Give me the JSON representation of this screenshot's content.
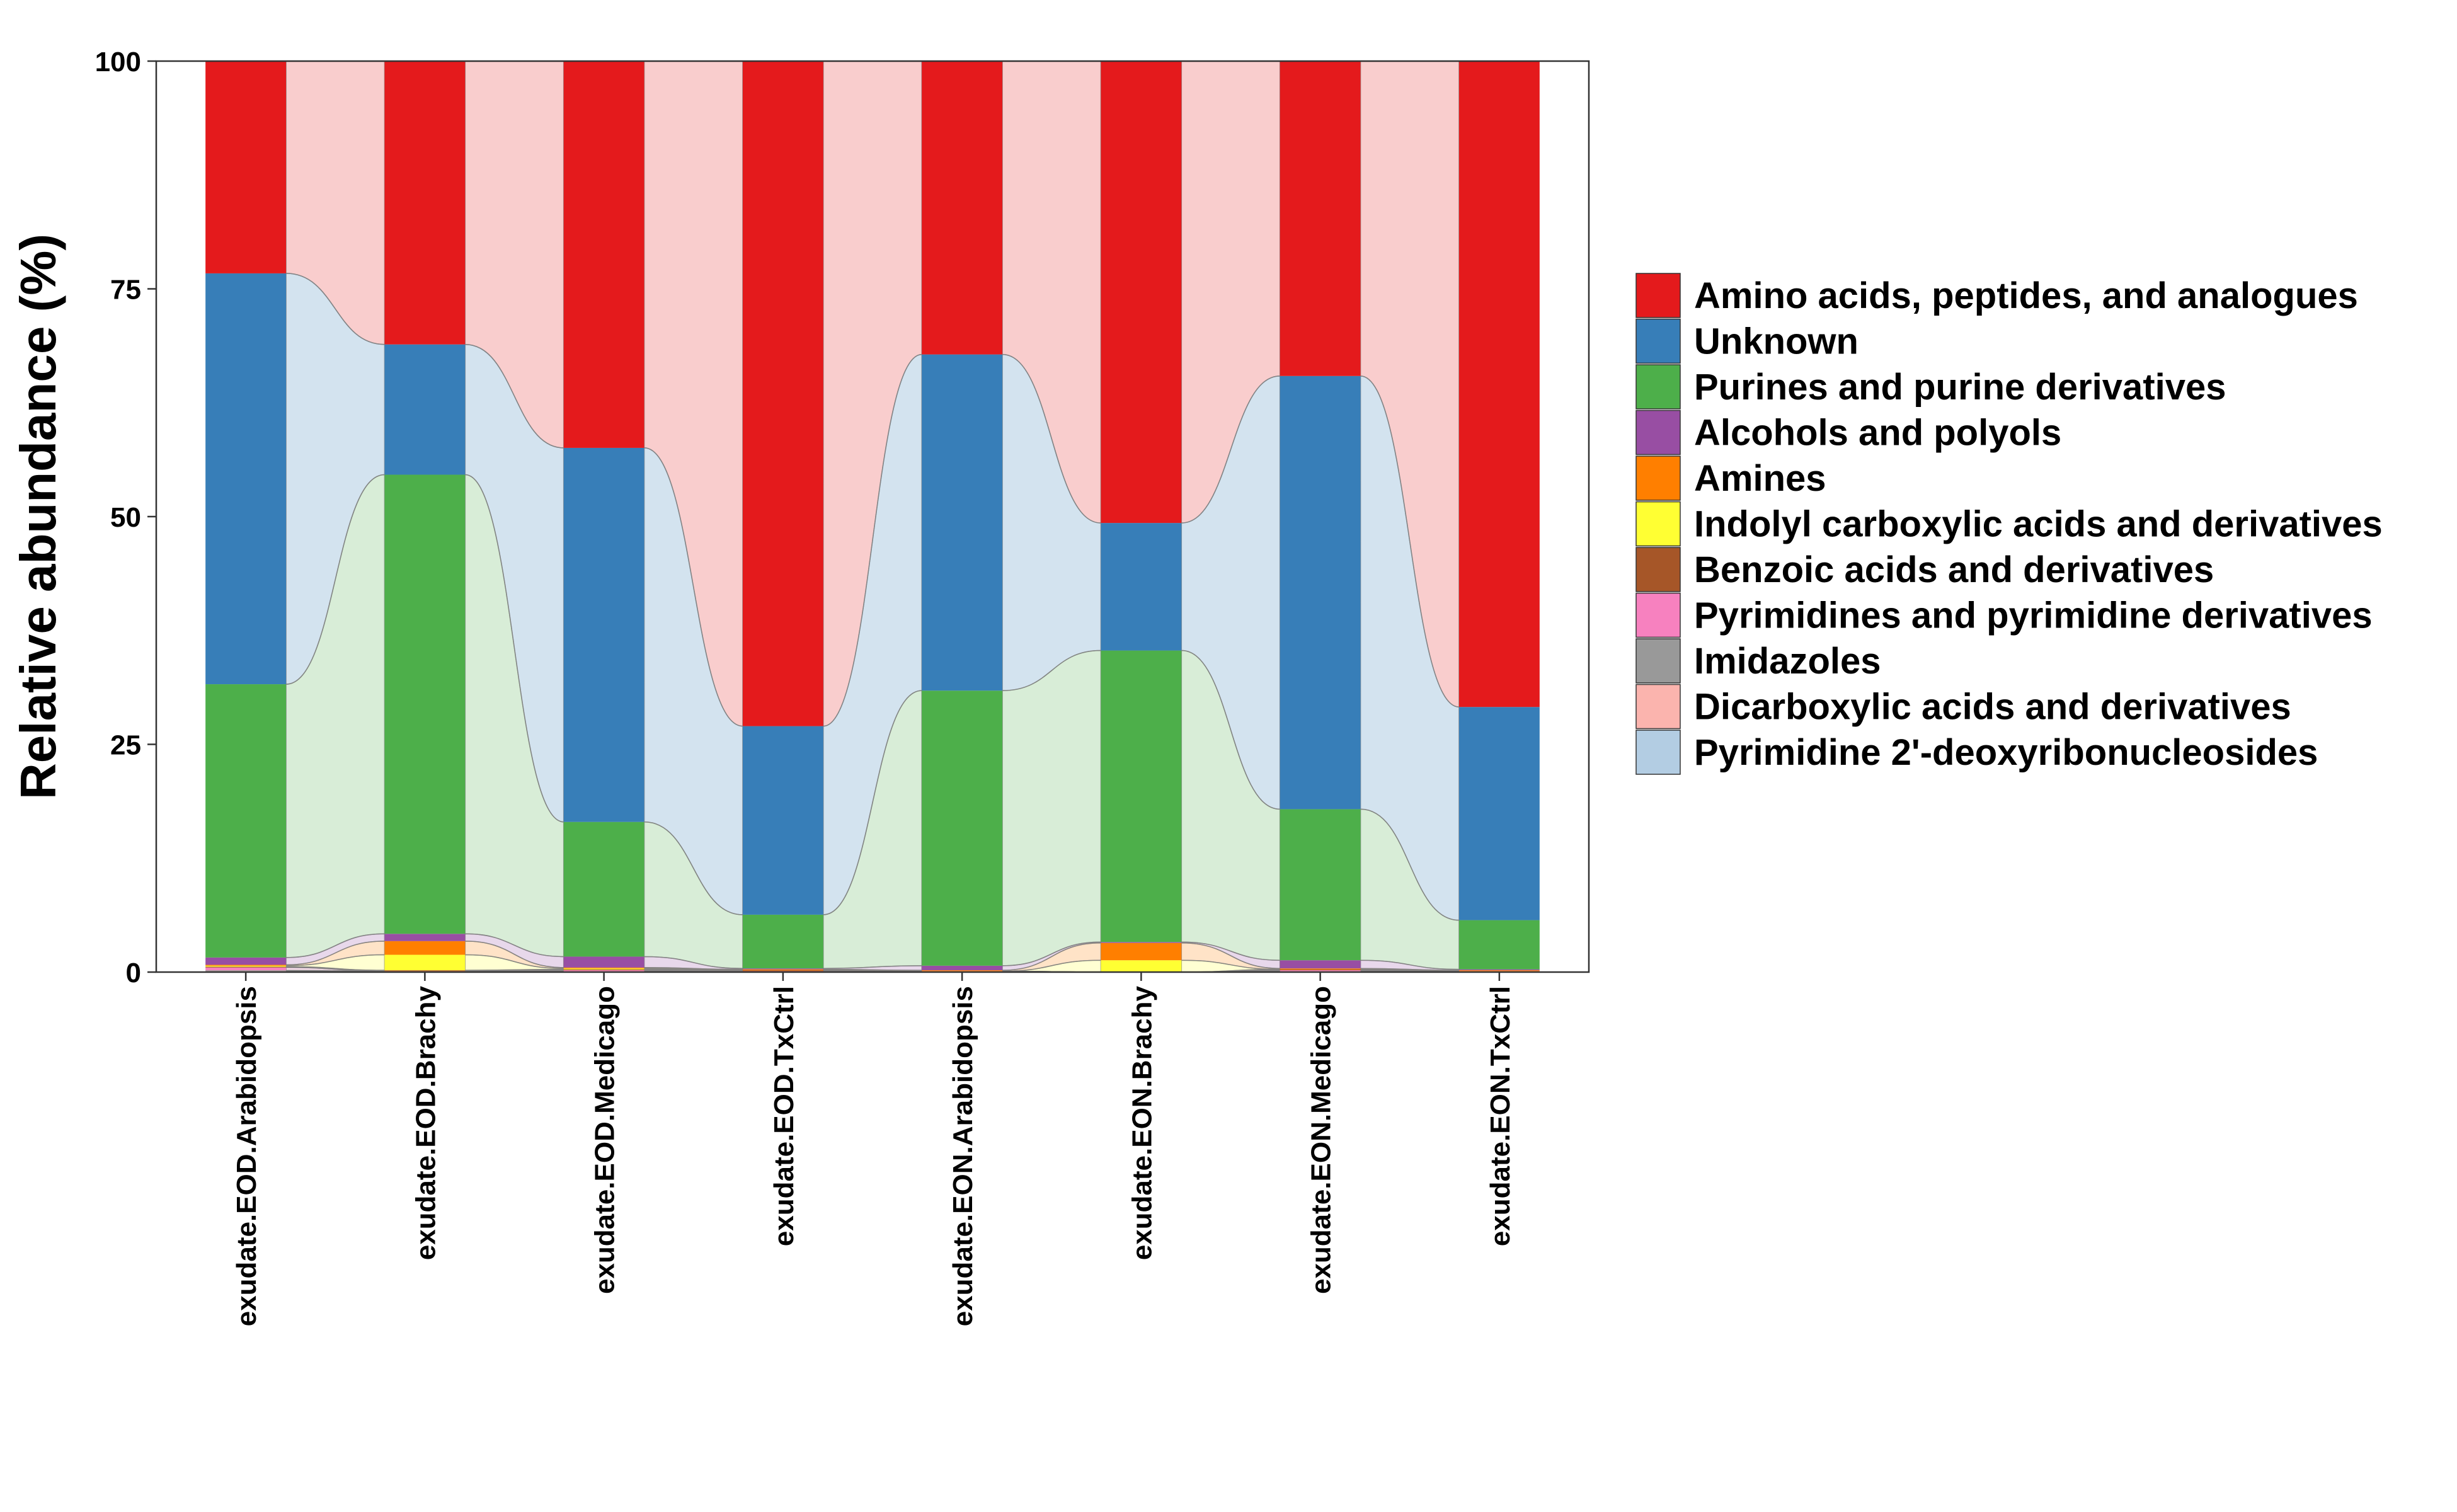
{
  "chart_data": {
    "type": "bar",
    "stacked": true,
    "ylabel": "Relative abundance (%)",
    "xlabel": "",
    "ylim": [
      0,
      100
    ],
    "yticks": [
      0,
      25,
      50,
      75,
      100
    ],
    "categories": [
      "exudate.EOD.Arabidopsis",
      "exudate.EOD.Brachy",
      "exudate.EOD.Medicago",
      "exudate.EOD.TxCtrl",
      "exudate.EON.Arabidopsis",
      "exudate.EON.Brachy",
      "exudate.EON.Medicago",
      "exudate.EON.TxCtrl"
    ],
    "series": [
      {
        "name": "Amino acids, peptides, and analogues",
        "color": "#E41A1C",
        "values": [
          23.3,
          31.1,
          42.5,
          73.0,
          32.2,
          50.7,
          34.6,
          70.9
        ]
      },
      {
        "name": "Unknown",
        "color": "#377EB8",
        "values": [
          45.1,
          14.3,
          41.1,
          20.7,
          36.9,
          14.0,
          47.6,
          23.4
        ]
      },
      {
        "name": "Purines and purine derivatives",
        "color": "#4DAF4A",
        "values": [
          30.0,
          50.4,
          14.8,
          5.9,
          30.2,
          32.0,
          16.6,
          5.4
        ]
      },
      {
        "name": "Alcohols and polyols",
        "color": "#984EA3",
        "values": [
          0.8,
          0.8,
          1.2,
          0.1,
          0.5,
          0.1,
          0.9,
          0.1
        ]
      },
      {
        "name": "Amines",
        "color": "#FF7F00",
        "values": [
          0.1,
          1.5,
          0.1,
          0.1,
          0.1,
          1.9,
          0.1,
          0.1
        ]
      },
      {
        "name": "Indolyl carboxylic acids and derivatives",
        "color": "#FFFF33",
        "values": [
          0.1,
          1.7,
          0.1,
          0.0,
          0.0,
          1.3,
          0.0,
          0.0
        ]
      },
      {
        "name": "Benzoic acids and derivatives",
        "color": "#A65628",
        "values": [
          0.1,
          0.1,
          0.1,
          0.1,
          0.0,
          0.0,
          0.1,
          0.0
        ]
      },
      {
        "name": "Pyrimidines and pyrimidine derivatives",
        "color": "#F781BF",
        "values": [
          0.3,
          0.0,
          0.1,
          0.1,
          0.0,
          0.0,
          0.1,
          0.0
        ]
      },
      {
        "name": "Imidazoles",
        "color": "#999999",
        "values": [
          0.1,
          0.0,
          0.0,
          0.0,
          0.0,
          0.0,
          0.0,
          0.0
        ]
      },
      {
        "name": "Dicarboxylic acids and derivatives",
        "color": "#FBB4AE",
        "values": [
          0.05,
          0.05,
          0.05,
          0.0,
          0.05,
          0.0,
          0.05,
          0.05
        ]
      },
      {
        "name": "Pyrimidine 2'-deoxyribonucleosides",
        "color": "#B3CDE3",
        "values": [
          0.05,
          0.05,
          0.05,
          0.0,
          0.05,
          0.0,
          0.05,
          0.05
        ]
      }
    ],
    "legend_position": "right",
    "grid": false
  }
}
